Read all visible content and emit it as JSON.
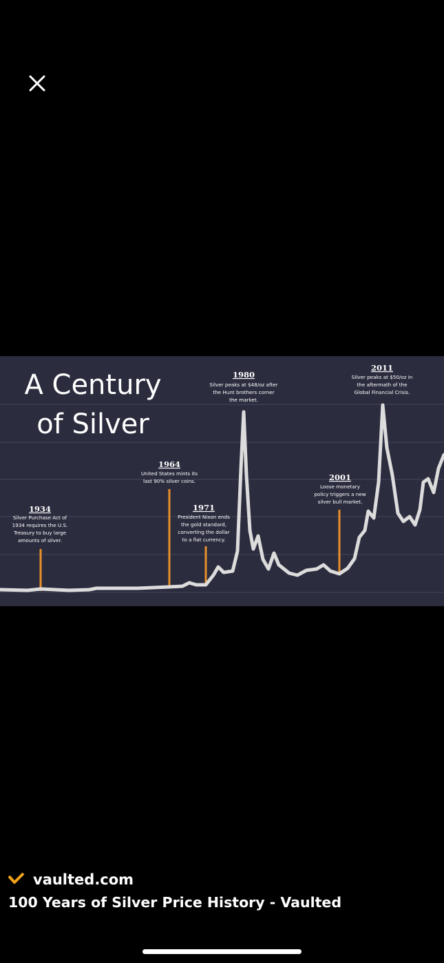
{
  "image": {
    "title_lines": [
      "A Century",
      "of Silver"
    ],
    "annotations": [
      {
        "year": "1934",
        "lines": [
          "Silver Purchase Act of",
          "1934 requires the U.S.",
          "Treasury to buy large",
          "amounts of silver."
        ]
      },
      {
        "year": "1964",
        "lines": [
          "United States mints its",
          "last 90% silver coins."
        ]
      },
      {
        "year": "1971",
        "lines": [
          "President Nixon ends",
          "the gold standard,",
          "converting the dollar",
          "to a fiat currency."
        ]
      },
      {
        "year": "1980",
        "lines": [
          "Silver peaks at $48/oz after",
          "the Hunt brothers corner",
          "the market."
        ]
      },
      {
        "year": "2001",
        "lines": [
          "Loose monetary",
          "policy triggers a new",
          "silver bull market."
        ]
      },
      {
        "year": "2011",
        "lines": [
          "Silver peaks at $50/oz in",
          "the aftermath of the",
          "Global Financial Crisis."
        ]
      }
    ]
  },
  "source": {
    "site": "vaulted.com",
    "caption": "100 Years of Silver Price History - Vaulted"
  }
}
